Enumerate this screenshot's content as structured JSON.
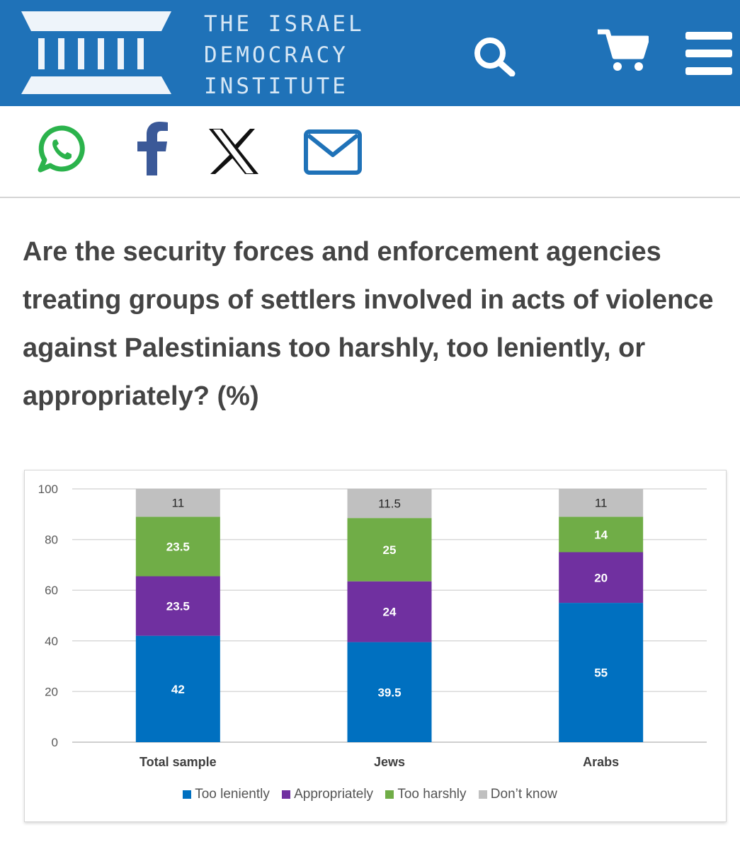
{
  "header": {
    "brand_lines": [
      "THE ISRAEL",
      "DEMOCRACY",
      "INSTITUTE"
    ],
    "icons": [
      "logo-columns-icon",
      "search-icon",
      "cart-icon",
      "menu-icon"
    ],
    "background_color": "#1f72b8"
  },
  "share": {
    "icons": [
      "whatsapp-icon",
      "facebook-icon",
      "x-icon",
      "email-icon"
    ]
  },
  "question": "Are the security forces and enforcement agencies treating groups of settlers involved in acts of violence against Palestinians too harshly, too leniently, or appropriately? (%)",
  "chart_data": {
    "type": "bar",
    "stacked": true,
    "title": "Are the security forces and enforcement agencies treating groups of settlers involved in acts of violence against Palestinians too harshly, too leniently, or appropriately? (%)",
    "categories": [
      "Total sample",
      "Jews",
      "Arabs"
    ],
    "series": [
      {
        "name": "Too leniently",
        "values": [
          42,
          39.5,
          55
        ],
        "color": "#0070c0",
        "label_color": "#ffffff"
      },
      {
        "name": "Appropriately",
        "values": [
          23.5,
          24,
          20
        ],
        "color": "#7030a0",
        "label_color": "#ffffff"
      },
      {
        "name": "Too harshly",
        "values": [
          23.5,
          25,
          14
        ],
        "color": "#70ad47",
        "label_color": "#ffffff"
      },
      {
        "name": "Don’t know",
        "values": [
          11,
          11.5,
          11
        ],
        "color": "#c0c0c0",
        "label_color": "#262626"
      }
    ],
    "yticks": [
      0,
      20,
      40,
      60,
      80,
      100
    ],
    "ylim": [
      0,
      100
    ],
    "grid": true,
    "legend_position": "bottom",
    "xlabel": "",
    "ylabel": ""
  }
}
